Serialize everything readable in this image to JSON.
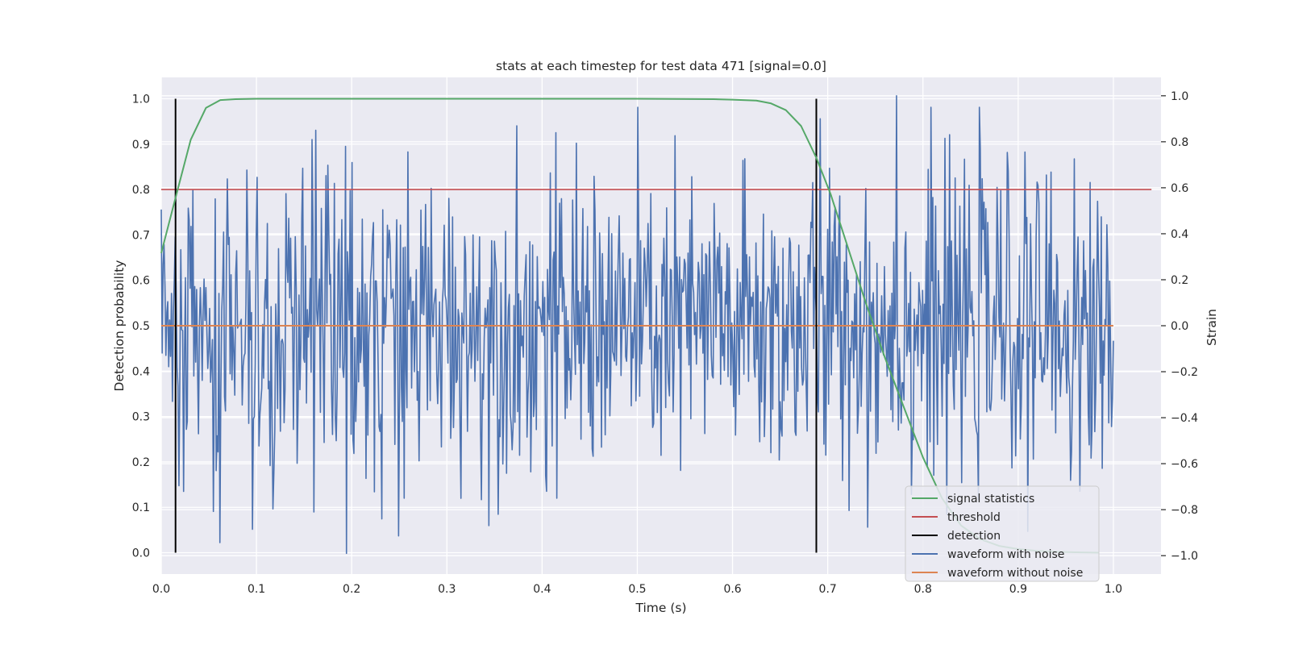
{
  "chart_data": {
    "type": "line",
    "title": "stats at each timestep for test data 471 [signal=0.0]",
    "xlabel": "Time (s)",
    "ylabel": "Detection probability",
    "y2label": "Strain",
    "xlim": [
      0.0,
      1.05
    ],
    "ylim": [
      -0.047,
      1.047
    ],
    "y2lim": [
      -1.08,
      1.08
    ],
    "x_ticks": [
      "0.0",
      "0.1",
      "0.2",
      "0.3",
      "0.4",
      "0.5",
      "0.6",
      "0.7",
      "0.8",
      "0.9",
      "1.0"
    ],
    "y_ticks": [
      "0.0",
      "0.1",
      "0.2",
      "0.3",
      "0.4",
      "0.5",
      "0.6",
      "0.7",
      "0.8",
      "0.9",
      "1.0"
    ],
    "y2_ticks": [
      "−1.0",
      "−0.8",
      "−0.6",
      "−0.4",
      "−0.2",
      "0.0",
      "0.2",
      "0.4",
      "0.6",
      "0.8",
      "1.0"
    ],
    "grid": true,
    "legend_position": "bottom-right",
    "series": [
      {
        "name": "signal statistics",
        "axis": "left",
        "color": "#55a868",
        "x": [
          0.0,
          0.016,
          0.031,
          0.047,
          0.062,
          0.078,
          0.1,
          0.2,
          0.3,
          0.4,
          0.5,
          0.58,
          0.6,
          0.625,
          0.64,
          0.656,
          0.672,
          0.688,
          0.703,
          0.72,
          0.74,
          0.76,
          0.78,
          0.8,
          0.82,
          0.84,
          0.86,
          0.88,
          0.9,
          0.92,
          0.94,
          0.96,
          0.985
        ],
        "y": [
          0.66,
          0.79,
          0.91,
          0.98,
          0.997,
          0.999,
          1.0,
          1.0,
          1.0,
          1.0,
          1.0,
          0.999,
          0.998,
          0.996,
          0.99,
          0.975,
          0.94,
          0.87,
          0.79,
          0.68,
          0.55,
          0.43,
          0.32,
          0.21,
          0.12,
          0.06,
          0.03,
          0.015,
          0.008,
          0.004,
          0.002,
          0.001,
          0.0
        ]
      },
      {
        "name": "threshold",
        "axis": "left",
        "color": "#c44e52",
        "x": [
          0.0,
          1.04
        ],
        "y": [
          0.8,
          0.8
        ]
      },
      {
        "name": "detection",
        "axis": "left",
        "color": "#000000",
        "x_values": [
          0.015,
          0.688
        ],
        "y_range": [
          0.0,
          1.0
        ]
      },
      {
        "name": "waveform with noise",
        "axis": "right",
        "color": "#4c72b0",
        "x_range": [
          0.0,
          1.0
        ],
        "n": 1024,
        "y_peaks": [
          [
            0.162,
            0.85
          ],
          [
            0.195,
            -0.99
          ],
          [
            0.194,
            0.78
          ],
          [
            0.2,
            0.71
          ],
          [
            0.232,
            -0.84
          ],
          [
            0.405,
            -0.72
          ],
          [
            0.415,
            -0.75
          ],
          [
            0.455,
            0.65
          ],
          [
            0.772,
            1.0
          ],
          [
            0.805,
            0.68
          ],
          [
            0.86,
            0.77
          ],
          [
            0.16,
            -0.81
          ],
          [
            0.058,
            -0.63
          ],
          [
            0.118,
            -0.64
          ],
          [
            0.255,
            -0.75
          ],
          [
            0.71,
            0.3
          ],
          [
            0.988,
            -0.62
          ],
          [
            0.692,
            0.9
          ],
          [
            0.825,
            -0.82
          ],
          [
            0.965,
            -0.72
          ]
        ],
        "y_amplitude": 0.32
      },
      {
        "name": "waveform without noise",
        "axis": "right",
        "color": "#dd8452",
        "x": [
          0.0,
          1.0
        ],
        "y": [
          0.0,
          0.0
        ]
      }
    ]
  }
}
